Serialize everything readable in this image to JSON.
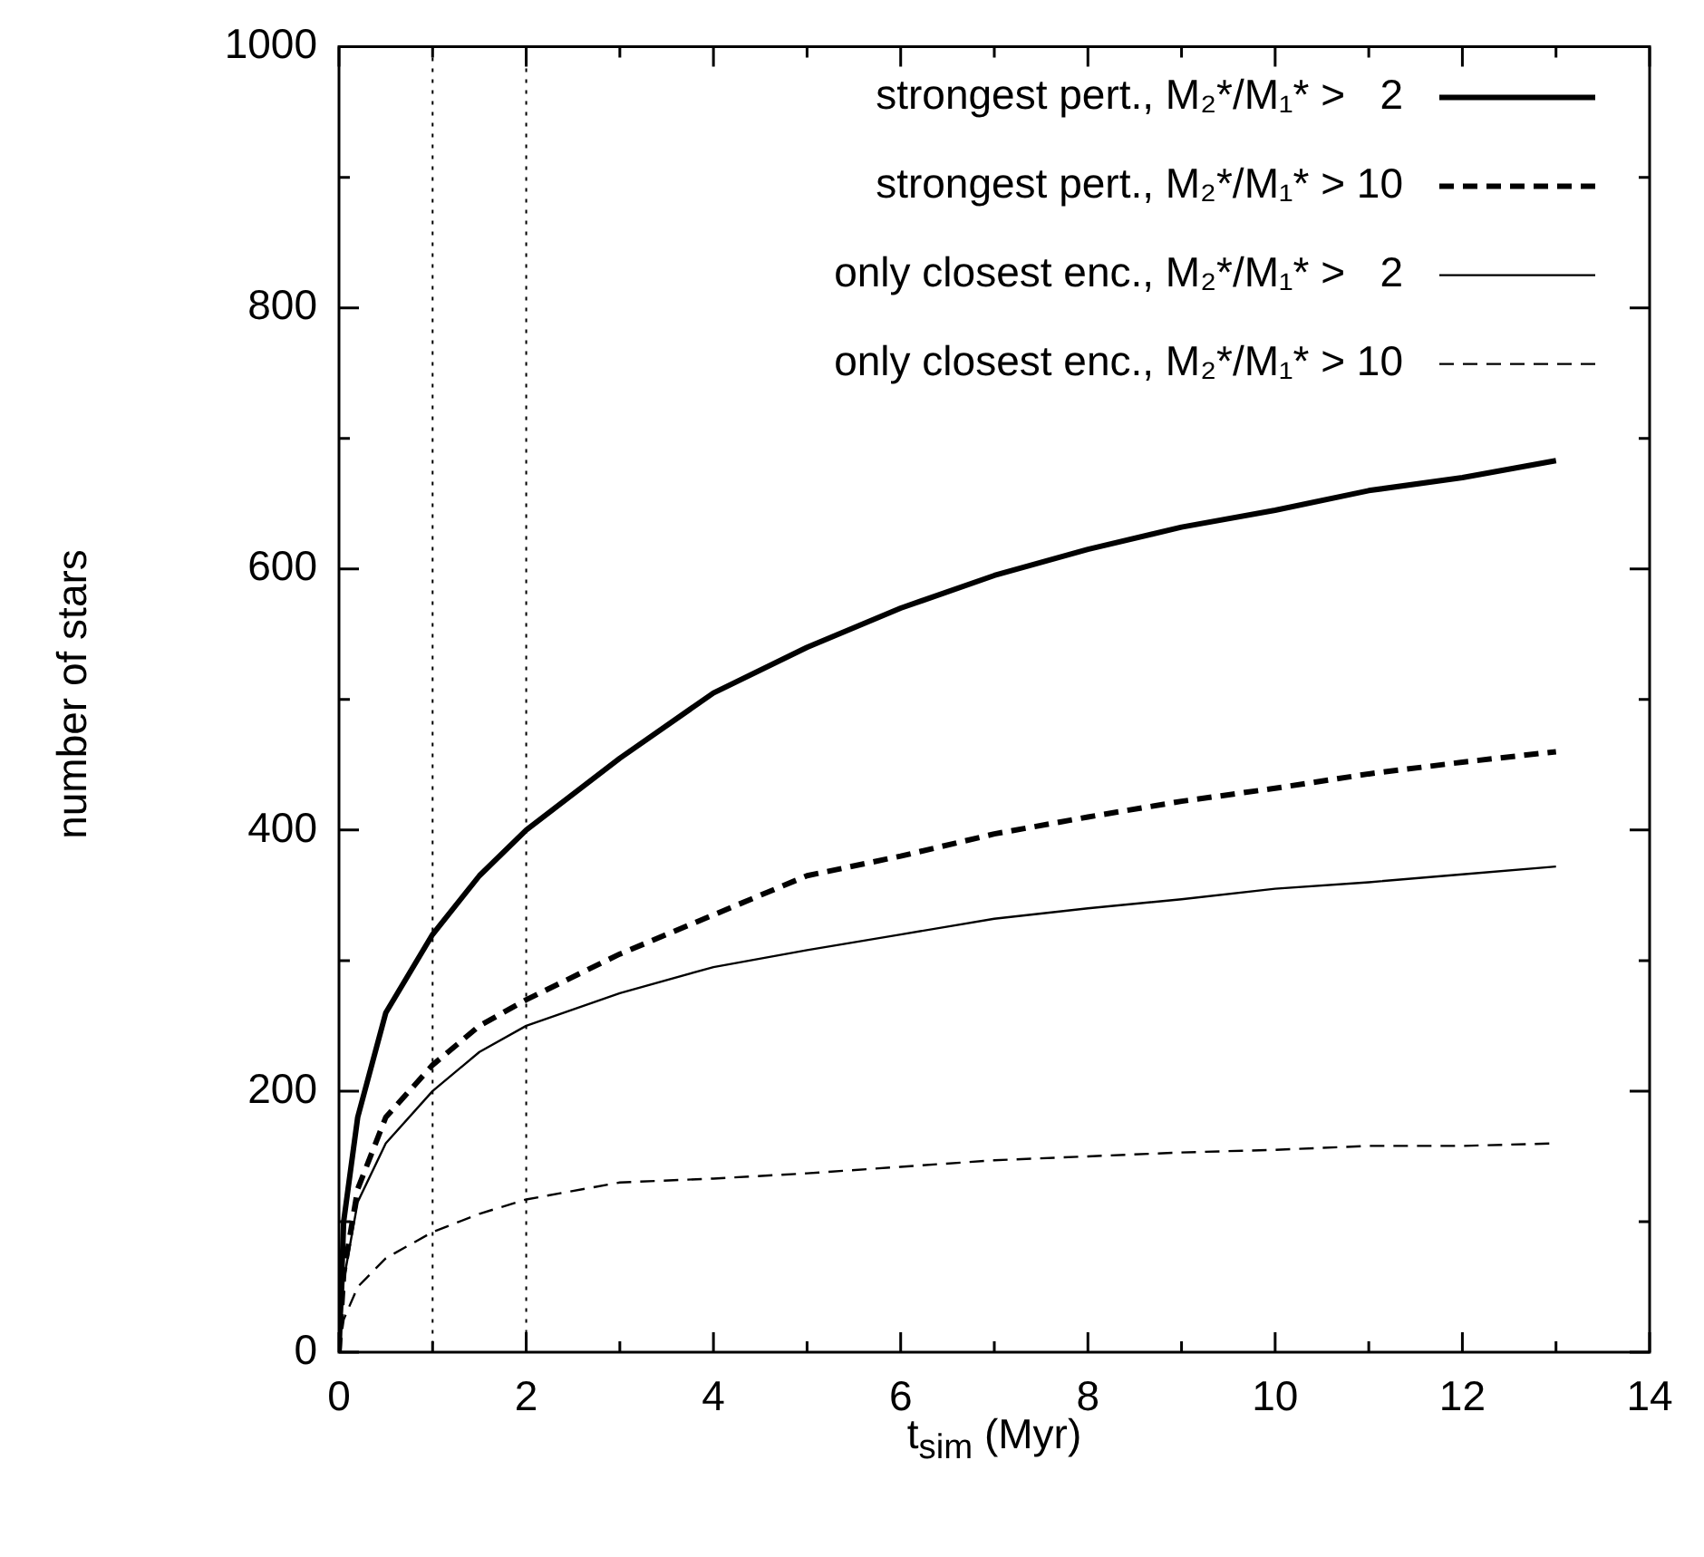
{
  "chart_data": {
    "type": "line",
    "xlabel": "t$_{sim}$ (Myr)",
    "ylabel": "number of stars",
    "xlim": [
      0,
      14
    ],
    "ylim": [
      0,
      1000
    ],
    "xticks": [
      0,
      {
        "value": 1,
        "label": null
      },
      2,
      {
        "value": 3,
        "label": null
      },
      4,
      {
        "value": 5,
        "label": null
      },
      6,
      {
        "value": 7,
        "label": null
      },
      8,
      {
        "value": 9,
        "label": null
      },
      10,
      {
        "value": 11,
        "label": null
      },
      12,
      {
        "value": 13,
        "label": null
      },
      14
    ],
    "yticks": [
      0,
      {
        "value": 100,
        "label": null
      },
      200,
      {
        "value": 300,
        "label": null
      },
      400,
      {
        "value": 500,
        "label": null
      },
      600,
      {
        "value": 700,
        "label": null
      },
      800,
      {
        "value": 900,
        "label": null
      },
      1000
    ],
    "x": [
      0,
      0.05,
      0.2,
      0.5,
      1,
      1.5,
      2,
      3,
      4,
      5,
      6,
      7,
      8,
      9,
      10,
      11,
      12,
      13
    ],
    "series": [
      {
        "name": "strongest pert., M₂*/M₁* >   2",
        "color": "#000000",
        "line_style": "solid",
        "values": [
          0,
          100,
          180,
          260,
          320,
          365,
          400,
          455,
          505,
          540,
          570,
          595,
          615,
          632,
          645,
          660,
          670,
          683
        ]
      },
      {
        "name": "strongest pert., M₂*/M₁* > 10",
        "color": "#000000",
        "line_style": "dashed",
        "values": [
          0,
          60,
          125,
          180,
          220,
          250,
          270,
          305,
          335,
          365,
          380,
          397,
          410,
          422,
          432,
          443,
          452,
          460
        ]
      },
      {
        "name": "only closest enc., M₂*/M₁* >   2",
        "color": "#000000",
        "line_style": "solid",
        "values": [
          0,
          55,
          115,
          160,
          200,
          230,
          250,
          275,
          295,
          308,
          320,
          332,
          340,
          347,
          355,
          360,
          366,
          372
        ]
      },
      {
        "name": "only closest enc., M₂*/M₁* > 10",
        "color": "#000000",
        "line_style": "dashed",
        "values": [
          0,
          25,
          50,
          72,
          92,
          106,
          117,
          130,
          133,
          137,
          142,
          147,
          150,
          153,
          155,
          158,
          158,
          160
        ]
      }
    ],
    "ref_lines": [
      {
        "axis": "x",
        "value": 1,
        "color": "#000000",
        "line_style": "dotted"
      },
      {
        "axis": "x",
        "value": 2,
        "color": "#000000",
        "line_style": "dotted"
      }
    ],
    "legend": "top right",
    "grid": false,
    "marker": "none"
  }
}
